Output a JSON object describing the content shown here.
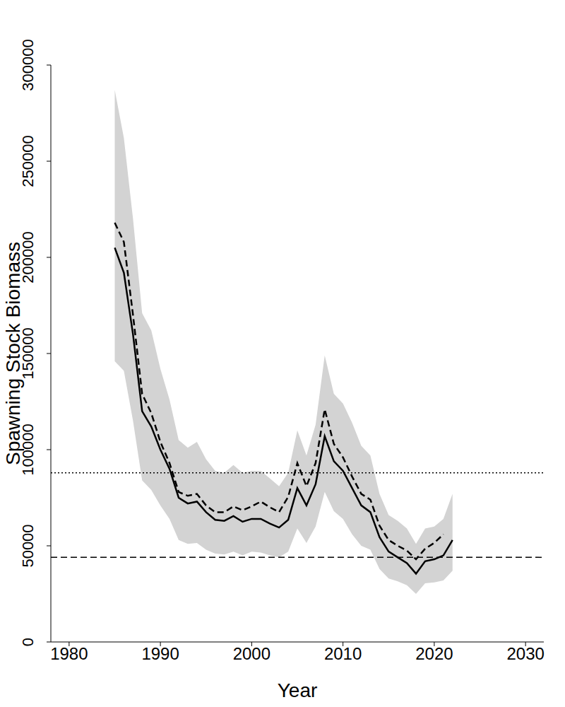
{
  "chart_data": {
    "type": "line",
    "x_label": "Year",
    "y_label": "Spawning Stock Biomass",
    "x": [
      1985,
      1986,
      1987,
      1988,
      1989,
      1990,
      1991,
      1992,
      1993,
      1994,
      1995,
      1996,
      1997,
      1998,
      1999,
      2000,
      2001,
      2002,
      2003,
      2004,
      2005,
      2006,
      2007,
      2008,
      2009,
      2010,
      2011,
      2012,
      2013,
      2014,
      2015,
      2016,
      2017,
      2018,
      2019,
      2020,
      2021,
      2022
    ],
    "xlim": [
      1978,
      2032
    ],
    "xticks": [
      1980,
      1990,
      2000,
      2010,
      2020,
      2030
    ],
    "ylim": [
      0,
      300000
    ],
    "yticks": [
      0,
      50000,
      100000,
      150000,
      200000,
      250000,
      300000
    ],
    "grid": false,
    "series": [
      {
        "color": "#000000",
        "line_style": "solid",
        "values": [
          205000,
          192000,
          160000,
          120000,
          112000,
          100000,
          90000,
          75000,
          72000,
          73000,
          67500,
          63500,
          63000,
          65500,
          62500,
          64000,
          64000,
          61500,
          59500,
          63500,
          80000,
          71000,
          82000,
          107000,
          94000,
          89000,
          80000,
          71000,
          67500,
          54500,
          47000,
          44000,
          41000,
          35500,
          42000,
          43000,
          45000,
          53000
        ]
      },
      {
        "color": "#000000",
        "line_style": "dashed",
        "values": [
          218000,
          208000,
          170000,
          129000,
          119000,
          104000,
          93000,
          78000,
          76000,
          77000,
          71000,
          67500,
          67500,
          70500,
          68500,
          70500,
          73000,
          70000,
          67500,
          75500,
          93000,
          81000,
          93000,
          121000,
          103000,
          96000,
          86000,
          77000,
          74000,
          60500,
          53000,
          50000,
          47500,
          43000,
          48500,
          51500,
          56000,
          null
        ]
      }
    ],
    "band": {
      "color": "#d3d3d3",
      "lower": [
        146000,
        141000,
        115000,
        84000,
        79000,
        71000,
        64000,
        53000,
        51000,
        51500,
        48000,
        46000,
        45500,
        47000,
        45000,
        47000,
        46500,
        45000,
        44000,
        47000,
        59000,
        51500,
        60000,
        78000,
        68000,
        64000,
        56000,
        50000,
        48000,
        38000,
        33000,
        31500,
        29500,
        25000,
        30500,
        31000,
        32000,
        37000
      ],
      "upper": [
        287000,
        262000,
        220000,
        171000,
        162000,
        142000,
        126000,
        105000,
        101000,
        104000,
        95000,
        89000,
        88000,
        92000,
        88000,
        89000,
        89000,
        85000,
        81000,
        88000,
        110000,
        97000,
        113000,
        149000,
        129000,
        124000,
        114000,
        102000,
        97000,
        77000,
        66000,
        63000,
        59000,
        51000,
        59000,
        60000,
        64000,
        77000
      ]
    },
    "reference_lines": [
      {
        "value": 88000,
        "color": "#000000",
        "line_style": "dotted"
      },
      {
        "value": 44000,
        "color": "#000000",
        "line_style": "dashed"
      }
    ]
  }
}
